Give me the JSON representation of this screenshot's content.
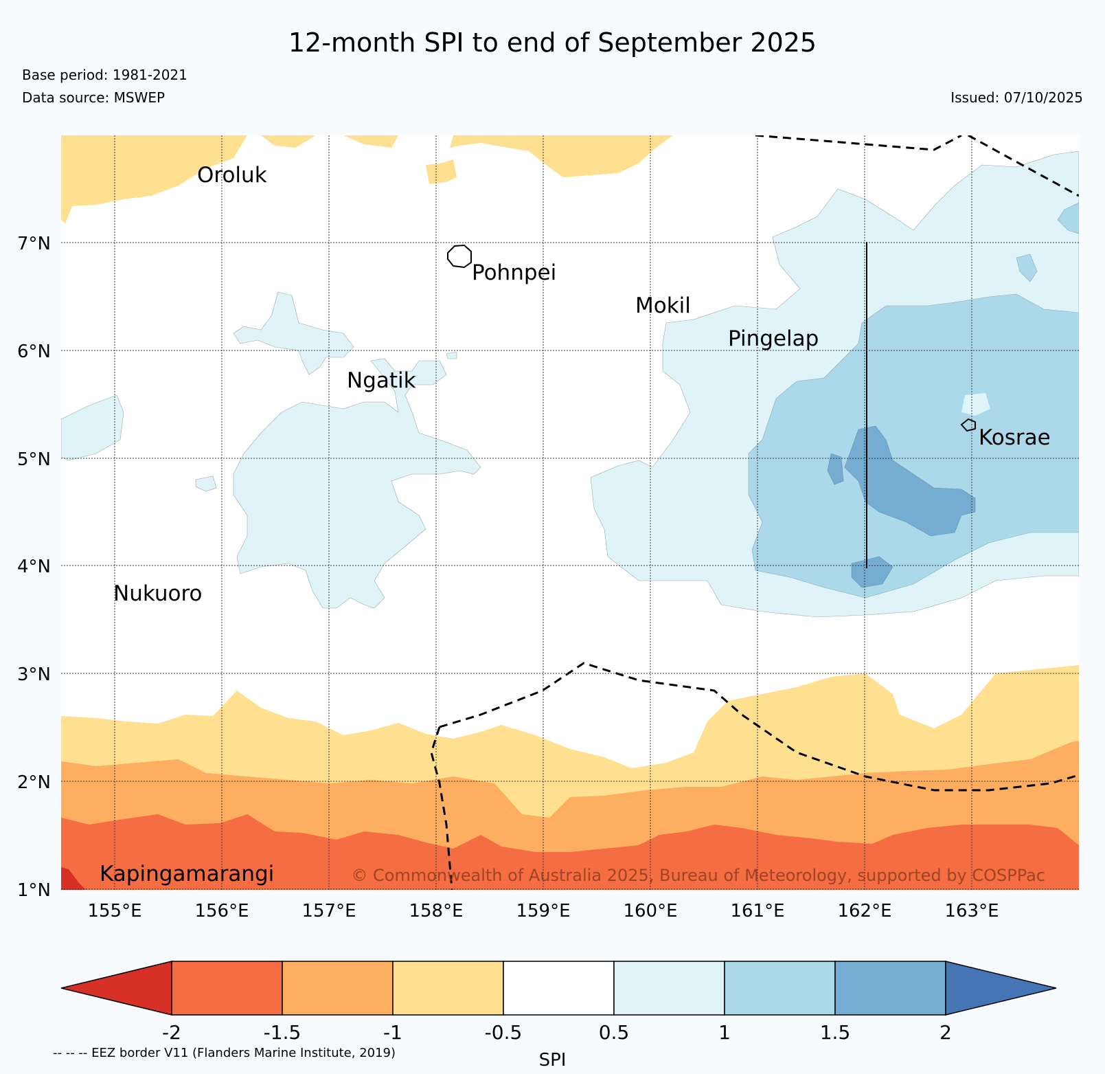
{
  "title": "12-month SPI to end of September 2025",
  "base_period": "Base period: 1981-2021",
  "data_source": "Data source: MSWEP",
  "issued": "Issued: 07/10/2025",
  "copyright": "© Commonwealth of Australia 2025, Bureau of Meteorology, supported by COSPPac",
  "eez_note": "-- -- -- EEZ border V11 (Flanders Marine Institute, 2019)",
  "map": {
    "lon_ticks": [
      "155°E",
      "156°E",
      "157°E",
      "158°E",
      "159°E",
      "160°E",
      "161°E",
      "162°E",
      "163°E"
    ],
    "lat_ticks": [
      "7°N",
      "6°N",
      "5°N",
      "4°N",
      "3°N",
      "2°N",
      "1°N"
    ],
    "places": [
      {
        "name": "Oroluk"
      },
      {
        "name": "Pohnpei"
      },
      {
        "name": "Mokil"
      },
      {
        "name": "Pingelap"
      },
      {
        "name": "Ngatik"
      },
      {
        "name": "Kosrae"
      },
      {
        "name": "Nukuoro"
      },
      {
        "name": "Kapingamarangi"
      }
    ]
  },
  "colorbar": {
    "label": "SPI",
    "ticks": [
      "-2",
      "-1.5",
      "-1",
      "-0.5",
      "0.5",
      "1",
      "1.5",
      "2"
    ],
    "colors": [
      "#d73027",
      "#f46d43",
      "#fdae61",
      "#fee090",
      "#ffffff",
      "#e0f3f8",
      "#abd9e9",
      "#74add1",
      "#4575b4"
    ]
  },
  "colors": {
    "background": "#f8fbfd",
    "dry_moderate": "#fee090",
    "dry_serious": "#fdae61",
    "dry_severe": "#f46d43",
    "dry_extreme": "#d73027",
    "wet_mild": "#e0f3f8",
    "wet_moderate": "#abd9e9",
    "wet_high": "#74add1"
  }
}
